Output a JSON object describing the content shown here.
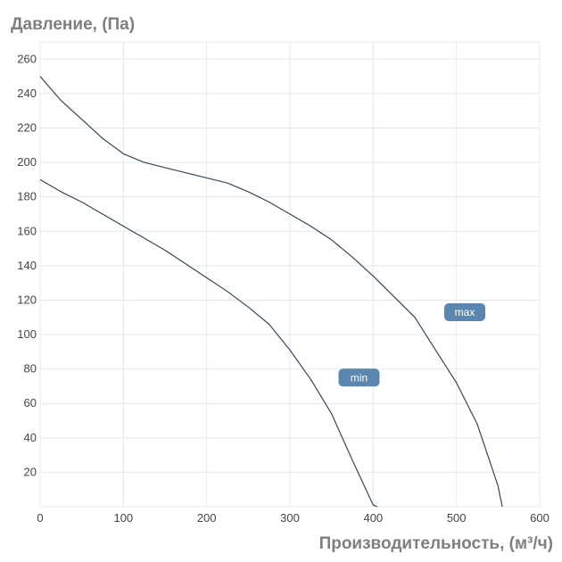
{
  "chart_data": {
    "type": "line",
    "ylabel": "Давление, (Па)",
    "xlabel": "Производительность, (м³/ч)",
    "xlim": [
      0,
      600
    ],
    "ylim": [
      0,
      270
    ],
    "xticks": [
      0,
      100,
      200,
      300,
      400,
      500,
      600
    ],
    "yticks": [
      20,
      40,
      60,
      80,
      100,
      120,
      140,
      160,
      180,
      200,
      220,
      240,
      260
    ],
    "grid": true,
    "series": [
      {
        "name": "max",
        "x": [
          0,
          25,
          50,
          75,
          100,
          125,
          150,
          175,
          200,
          225,
          250,
          275,
          300,
          325,
          350,
          375,
          400,
          425,
          450,
          475,
          500,
          525,
          550,
          555
        ],
        "y": [
          250,
          236,
          225,
          214,
          205,
          200,
          197,
          194,
          191,
          188,
          183,
          177,
          170,
          163,
          155,
          145,
          134,
          122,
          110,
          91,
          72,
          48,
          12,
          0
        ]
      },
      {
        "name": "min",
        "x": [
          0,
          25,
          50,
          75,
          100,
          125,
          150,
          175,
          200,
          225,
          250,
          275,
          300,
          325,
          350,
          375,
          400,
          405
        ],
        "y": [
          190,
          183,
          177,
          170,
          163,
          156,
          149,
          141,
          133,
          125,
          116,
          106,
          91,
          74,
          54,
          27,
          1,
          0
        ]
      }
    ],
    "annotations": [
      {
        "text": "max",
        "series": "max",
        "x": 510,
        "y": 113
      },
      {
        "text": "min",
        "series": "min",
        "x": 383,
        "y": 75
      }
    ]
  },
  "colors": {
    "line": "#33475a",
    "grid": "#e4e8ee",
    "badge": "#5b86ad",
    "axis_title": "#7f7f7f",
    "tick": "#444444"
  }
}
